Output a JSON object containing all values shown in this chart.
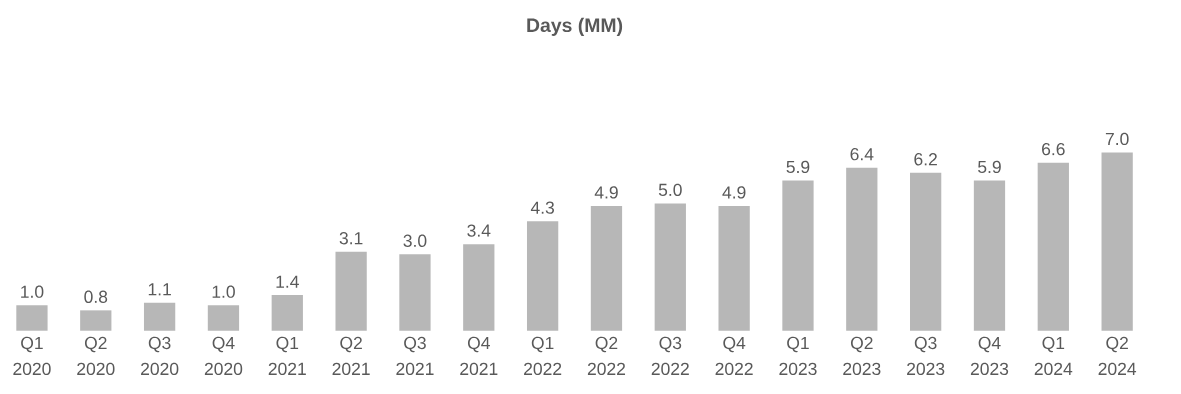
{
  "chart_data": {
    "type": "bar",
    "title": "Days (MM)",
    "categories": [
      "Q1 2020",
      "Q2 2020",
      "Q3 2020",
      "Q4 2020",
      "Q1 2021",
      "Q2 2021",
      "Q3 2021",
      "Q4 2021",
      "Q1 2022",
      "Q2 2022",
      "Q3 2022",
      "Q4 2022",
      "Q1 2023",
      "Q2 2023",
      "Q3 2023",
      "Q4 2023",
      "Q1 2024",
      "Q2 2024"
    ],
    "values": [
      1.0,
      0.8,
      1.1,
      1.0,
      1.4,
      3.1,
      3.0,
      3.4,
      4.3,
      4.9,
      5.0,
      4.9,
      5.9,
      6.4,
      6.2,
      5.9,
      6.6,
      7.0
    ],
    "value_labels": [
      "1.0",
      "0.8",
      "1.1",
      "1.0",
      "1.4",
      "3.1",
      "3.0",
      "3.4",
      "4.3",
      "4.9",
      "5.0",
      "4.9",
      "5.9",
      "6.4",
      "6.2",
      "5.9",
      "6.6",
      "7.0"
    ],
    "color": "#b7b7b7"
  }
}
